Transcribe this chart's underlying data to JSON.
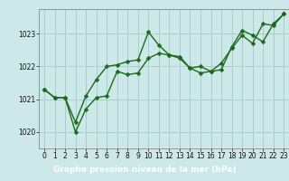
{
  "background_color": "#cce8e8",
  "grid_color": "#aacccc",
  "line_color": "#1a6b1a",
  "xlabel": "Graphe pression niveau de la mer (hPa)",
  "xlabel_bg": "#2d6b2d",
  "xlabel_fg": "#ffffff",
  "ylim": [
    1019.5,
    1023.75
  ],
  "xlim": [
    -0.5,
    23.5
  ],
  "yticks": [
    1020,
    1021,
    1022,
    1023
  ],
  "xticks": [
    0,
    1,
    2,
    3,
    4,
    5,
    6,
    7,
    8,
    9,
    10,
    11,
    12,
    13,
    14,
    15,
    16,
    17,
    18,
    19,
    20,
    21,
    22,
    23
  ],
  "series1_x": [
    0,
    1,
    2,
    3,
    4,
    5,
    6,
    7,
    8,
    9,
    10,
    11,
    12,
    13,
    14,
    15,
    16,
    17,
    18,
    19,
    20,
    21,
    22,
    23
  ],
  "series1_y": [
    1021.3,
    1021.05,
    1021.05,
    1020.0,
    1020.7,
    1021.05,
    1021.1,
    1021.85,
    1021.75,
    1021.8,
    1022.25,
    1022.4,
    1022.35,
    1022.25,
    1021.95,
    1021.8,
    1021.85,
    1022.1,
    1022.55,
    1022.95,
    1022.7,
    1023.3,
    1023.25,
    1023.6
  ],
  "series2_x": [
    0,
    1,
    2,
    3,
    4,
    5,
    6,
    7,
    8,
    9,
    10,
    11,
    12,
    13,
    14,
    15,
    16,
    17,
    18,
    19,
    20,
    21,
    22,
    23
  ],
  "series2_y": [
    1021.3,
    1021.05,
    1021.05,
    1020.3,
    1021.1,
    1021.6,
    1022.0,
    1022.05,
    1022.15,
    1022.2,
    1023.05,
    1022.65,
    1022.35,
    1022.3,
    1021.95,
    1022.0,
    1021.85,
    1021.9,
    1022.6,
    1023.1,
    1022.95,
    1022.75,
    1023.3,
    1023.6
  ],
  "marker_style": "D",
  "marker_size": 2.5,
  "linewidth": 1.0,
  "tick_fontsize": 5.5,
  "xlabel_fontsize": 6.5
}
